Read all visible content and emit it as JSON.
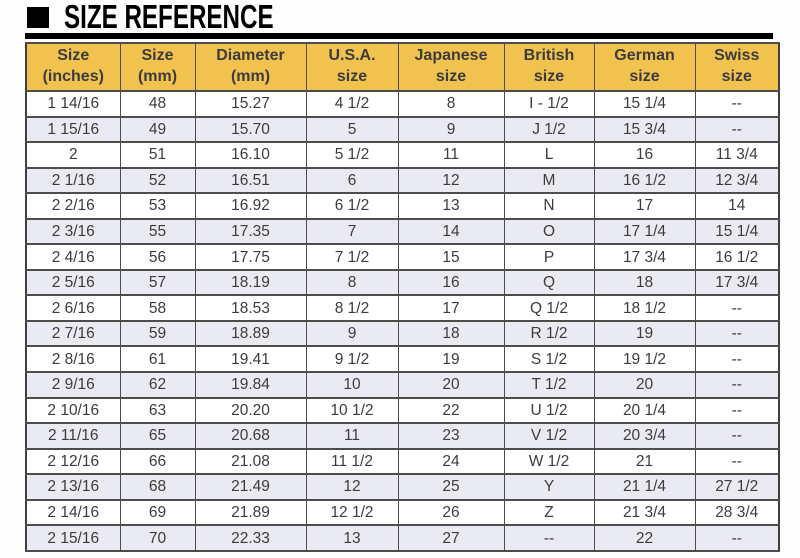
{
  "title": "SIZE REFERENCE",
  "colors": {
    "header_bg": "#F2C24F",
    "row_alt_bg": "#EAEAF2",
    "border": "#4D4D4D",
    "text": "#3C3C3C",
    "title": "#000000"
  },
  "table": {
    "columns": [
      {
        "line1": "Size",
        "line2": "(inches)"
      },
      {
        "line1": "Size",
        "line2": "(mm)"
      },
      {
        "line1": "Diameter",
        "line2": "(mm)"
      },
      {
        "line1": "U.S.A.",
        "line2": "size"
      },
      {
        "line1": "Japanese",
        "line2": "size"
      },
      {
        "line1": "British",
        "line2": "size"
      },
      {
        "line1": "German",
        "line2": "size"
      },
      {
        "line1": "Swiss",
        "line2": "size"
      }
    ],
    "rows": [
      [
        "1 14/16",
        "48",
        "15.27",
        "4 1/2",
        "8",
        "I - 1/2",
        "15 1/4",
        "--"
      ],
      [
        "1 15/16",
        "49",
        "15.70",
        "5",
        "9",
        "J 1/2",
        "15 3/4",
        "--"
      ],
      [
        "2",
        "51",
        "16.10",
        "5 1/2",
        "11",
        "L",
        "16",
        "11 3/4"
      ],
      [
        "2 1/16",
        "52",
        "16.51",
        "6",
        "12",
        "M",
        "16 1/2",
        "12 3/4"
      ],
      [
        "2 2/16",
        "53",
        "16.92",
        "6 1/2",
        "13",
        "N",
        "17",
        "14"
      ],
      [
        "2 3/16",
        "55",
        "17.35",
        "7",
        "14",
        "O",
        "17 1/4",
        "15 1/4"
      ],
      [
        "2 4/16",
        "56",
        "17.75",
        "7 1/2",
        "15",
        "P",
        "17 3/4",
        "16 1/2"
      ],
      [
        "2 5/16",
        "57",
        "18.19",
        "8",
        "16",
        "Q",
        "18",
        "17 3/4"
      ],
      [
        "2 6/16",
        "58",
        "18.53",
        "8 1/2",
        "17",
        "Q 1/2",
        "18 1/2",
        "--"
      ],
      [
        "2 7/16",
        "59",
        "18.89",
        "9",
        "18",
        "R 1/2",
        "19",
        "--"
      ],
      [
        "2 8/16",
        "61",
        "19.41",
        "9 1/2",
        "19",
        "S 1/2",
        "19 1/2",
        "--"
      ],
      [
        "2 9/16",
        "62",
        "19.84",
        "10",
        "20",
        "T 1/2",
        "20",
        "--"
      ],
      [
        "2 10/16",
        "63",
        "20.20",
        "10 1/2",
        "22",
        "U 1/2",
        "20 1/4",
        "--"
      ],
      [
        "2 11/16",
        "65",
        "20.68",
        "11",
        "23",
        "V 1/2",
        "20 3/4",
        "--"
      ],
      [
        "2 12/16",
        "66",
        "21.08",
        "11 1/2",
        "24",
        "W 1/2",
        "21",
        "--"
      ],
      [
        "2 13/16",
        "68",
        "21.49",
        "12",
        "25",
        "Y",
        "21 1/4",
        "27 1/2"
      ],
      [
        "2 14/16",
        "69",
        "21.89",
        "12 1/2",
        "26",
        "Z",
        "21 3/4",
        "28 3/4"
      ],
      [
        "2 15/16",
        "70",
        "22.33",
        "13",
        "27",
        "--",
        "22",
        "--"
      ]
    ]
  }
}
